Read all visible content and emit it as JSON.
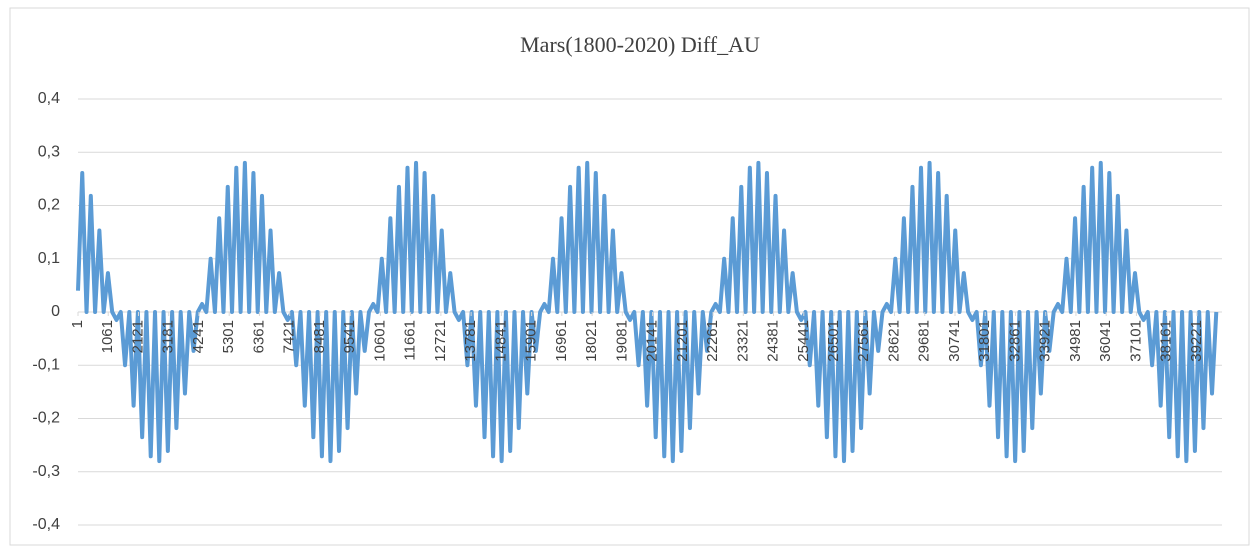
{
  "chart_data": {
    "type": "line",
    "title": "Mars(1800-2020) Diff_AU",
    "color": "#5b9bd5",
    "grid": true,
    "xlim": [
      1,
      40100
    ],
    "xticks": [
      1,
      1061,
      2121,
      3181,
      4241,
      5301,
      6361,
      7421,
      8481,
      9541,
      10601,
      11661,
      12721,
      13781,
      14841,
      15901,
      16961,
      18021,
      19081,
      20141,
      21201,
      22261,
      23321,
      24381,
      25441,
      26501,
      27561,
      28621,
      29681,
      30741,
      31801,
      32861,
      33921,
      34981,
      36041,
      37101,
      38161,
      39221
    ],
    "ylim": [
      -0.4,
      0.4
    ],
    "yticks": [
      {
        "value": 0.4,
        "label": "0,4"
      },
      {
        "value": 0.3,
        "label": "0,3"
      },
      {
        "value": 0.2,
        "label": "0,2"
      },
      {
        "value": 0.1,
        "label": "0,1"
      },
      0,
      {
        "value": -0.1,
        "label": "-0,1"
      },
      {
        "value": -0.2,
        "label": "-0,2"
      },
      {
        "value": -0.3,
        "label": "-0,3"
      },
      {
        "value": -0.4,
        "label": "-0,4"
      }
    ],
    "x": [
      1,
      150,
      300,
      450,
      600,
      750,
      900,
      1050,
      1200,
      1350,
      1500,
      1650,
      1800,
      1950,
      2100,
      2250,
      2400,
      2550,
      2700,
      2850,
      3000,
      3150,
      3300,
      3450,
      3600,
      3750,
      3900,
      4050,
      4200,
      4350,
      4500,
      4650,
      4800,
      4950,
      5100,
      5250,
      5400,
      5550,
      5700,
      5850,
      6000,
      6150,
      6300,
      6450,
      6600,
      6750,
      6900,
      7050,
      7200,
      7350,
      7500,
      7650,
      7800,
      7950,
      8100,
      8250,
      8400,
      8550,
      8700,
      8850,
      9000,
      9150,
      9300,
      9450,
      9600,
      9750,
      9900,
      10050,
      10200,
      10350,
      10500,
      10650,
      10800,
      10950,
      11100,
      11250,
      11400,
      11550,
      11700,
      11850,
      12000,
      12150,
      12300,
      12450,
      12600,
      12750,
      12900,
      13050,
      13200,
      13350,
      13500,
      13650,
      13800,
      13950,
      14100,
      14250,
      14400,
      14550,
      14700,
      14850,
      15000,
      15150,
      15300,
      15450,
      15600,
      15750,
      15900,
      16050,
      16200,
      16350,
      16500,
      16650,
      16800,
      16950,
      17100,
      17250,
      17400,
      17550,
      17700,
      17850,
      18000,
      18150,
      18300,
      18450,
      18600,
      18750,
      18900,
      19050,
      19200,
      19350,
      19500,
      19650,
      19800,
      19950,
      20100,
      20250,
      20400,
      20550,
      20700,
      20850,
      21000,
      21150,
      21300,
      21450,
      21600,
      21750,
      21900,
      22050,
      22200,
      22350,
      22500,
      22650,
      22800,
      22950,
      23100,
      23250,
      23400,
      23550,
      23700,
      23850,
      24000,
      24150,
      24300,
      24450,
      24600,
      24750,
      24900,
      25050,
      25200,
      25350,
      25500,
      25650,
      25800,
      25950,
      26100,
      26250,
      26400,
      26550,
      26700,
      26850,
      27000,
      27150,
      27300,
      27450,
      27600,
      27750,
      27900,
      28050,
      28200,
      28350,
      28500,
      28650,
      28800,
      28950,
      29100,
      29250,
      29400,
      29550,
      29700,
      29850,
      30000,
      30150,
      30300,
      30450,
      30600,
      30750,
      30900,
      31050,
      31200,
      31350,
      31500,
      31650,
      31800,
      31950,
      32100,
      32250,
      32400,
      32550,
      32700,
      32850,
      33000,
      33150,
      33300,
      33450,
      33600,
      33750,
      33900,
      34050,
      34200,
      34350,
      34500,
      34650,
      34800,
      34950,
      35100,
      35250,
      35400,
      35550,
      35700,
      35850,
      36000,
      36150,
      36300,
      36450,
      36600,
      36750,
      36900,
      37050,
      37200,
      37350,
      37500,
      37650,
      37800,
      37950,
      38100,
      38250,
      38400,
      38550,
      38700,
      38850,
      39000,
      39150,
      39300,
      39450,
      39600,
      39750,
      39900
    ],
    "values": [
      0.04,
      0.261,
      0,
      0.218,
      0,
      0.153,
      0,
      0.073,
      0,
      -0.015,
      0,
      -0.1,
      0,
      -0.176,
      0,
      -0.235,
      0,
      -0.271,
      0,
      -0.28,
      0,
      -0.261,
      0,
      -0.218,
      0,
      -0.153,
      0,
      -0.073,
      0,
      0.015,
      0,
      0.1,
      0,
      0.176,
      0,
      0.235,
      0,
      0.271,
      0,
      0.28,
      0,
      0.261,
      0,
      0.218,
      0,
      0.153,
      0,
      0.073,
      0,
      -0.015,
      0,
      -0.1,
      0,
      -0.176,
      0,
      -0.235,
      0,
      -0.271,
      0,
      -0.28,
      0,
      -0.261,
      0,
      -0.218,
      0,
      -0.153,
      0,
      -0.073,
      0,
      0.015,
      0,
      0.1,
      0,
      0.176,
      0,
      0.235,
      0,
      0.271,
      0,
      0.28,
      0,
      0.261,
      0,
      0.218,
      0,
      0.153,
      0,
      0.073,
      0,
      -0.015,
      0,
      -0.1,
      0,
      -0.176,
      0,
      -0.235,
      0,
      -0.271,
      0,
      -0.28,
      0,
      -0.261,
      0,
      -0.218,
      0,
      -0.153,
      0,
      -0.073,
      0,
      0.015,
      0,
      0.1,
      0,
      0.176,
      0,
      0.235,
      0,
      0.271,
      0,
      0.28,
      0,
      0.261,
      0,
      0.218,
      0,
      0.153,
      0,
      0.073,
      0,
      -0.015,
      0,
      -0.1,
      0,
      -0.176,
      0,
      -0.235,
      0,
      -0.271,
      0,
      -0.28,
      0,
      -0.261,
      0,
      -0.218,
      0,
      -0.153,
      0,
      -0.073,
      0,
      0.015,
      0,
      0.1,
      0,
      0.176,
      0,
      0.235,
      0,
      0.271,
      0,
      0.28,
      0,
      0.261,
      0,
      0.218,
      0,
      0.153,
      0,
      0.073,
      0,
      -0.015,
      0,
      -0.1,
      0,
      -0.176,
      0,
      -0.235,
      0,
      -0.271,
      0,
      -0.28,
      0,
      -0.261,
      0,
      -0.218,
      0,
      -0.153,
      0,
      -0.073,
      0,
      0.015,
      0,
      0.1,
      0,
      0.176,
      0,
      0.235,
      0,
      0.271,
      0,
      0.28,
      0,
      0.261,
      0,
      0.218,
      0,
      0.153,
      0,
      0.073,
      0,
      -0.015,
      0,
      -0.1,
      0,
      -0.176,
      0,
      -0.235,
      0,
      -0.271,
      0,
      -0.28,
      0,
      -0.261,
      0,
      -0.218,
      0,
      -0.153,
      0,
      -0.073,
      0,
      0.015,
      0,
      0.1,
      0,
      0.176,
      0,
      0.235,
      0,
      0.271,
      0,
      0.28,
      0,
      0.261,
      0,
      0.218,
      0,
      0.153,
      0,
      0.073,
      0,
      -0.015,
      0,
      -0.1,
      0,
      -0.176,
      0,
      -0.235,
      0,
      -0.271,
      0,
      -0.28,
      0,
      -0.261,
      0,
      -0.218,
      0,
      -0.153,
      0
    ]
  }
}
